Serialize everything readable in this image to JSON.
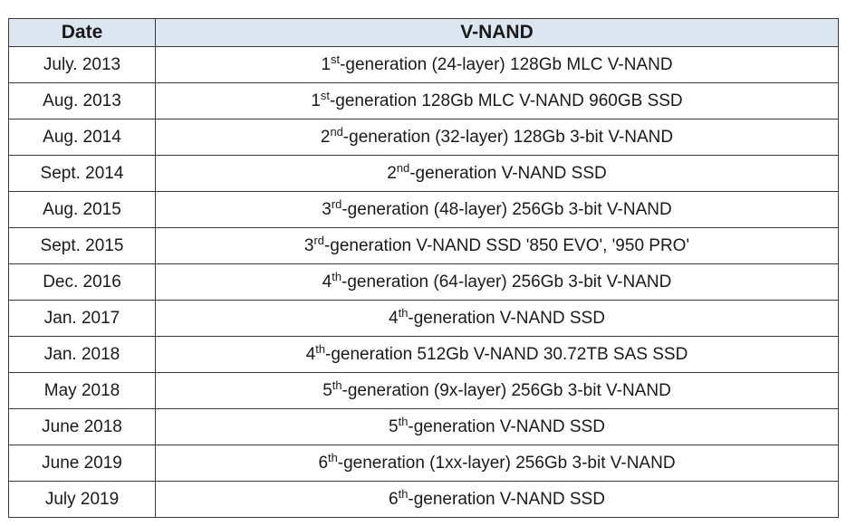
{
  "table": {
    "headers": {
      "date": "Date",
      "vnand": "V-NAND"
    },
    "rows": [
      {
        "date": "July. 2013",
        "num": "1",
        "suffix": "st",
        "desc": "-generation (24-layer) 128Gb MLC V-NAND"
      },
      {
        "date": "Aug. 2013",
        "num": "1",
        "suffix": "st",
        "desc": "-generation 128Gb MLC V-NAND 960GB SSD"
      },
      {
        "date": "Aug. 2014",
        "num": "2",
        "suffix": "nd",
        "desc": "-generation (32-layer) 128Gb 3-bit V-NAND"
      },
      {
        "date": "Sept. 2014",
        "num": "2",
        "suffix": "nd",
        "desc": "-generation V-NAND SSD"
      },
      {
        "date": "Aug. 2015",
        "num": "3",
        "suffix": "rd",
        "desc": "-generation (48-layer) 256Gb 3-bit V-NAND"
      },
      {
        "date": "Sept. 2015",
        "num": "3",
        "suffix": "rd",
        "desc": "-generation V-NAND SSD '850 EVO', '950 PRO'"
      },
      {
        "date": "Dec. 2016",
        "num": "4",
        "suffix": "th",
        "desc": "-generation (64-layer) 256Gb 3-bit V-NAND"
      },
      {
        "date": "Jan. 2017",
        "num": "4",
        "suffix": "th",
        "desc": "-generation V-NAND SSD"
      },
      {
        "date": "Jan. 2018",
        "num": "4",
        "suffix": "th",
        "desc": "-generation 512Gb V-NAND 30.72TB SAS SSD"
      },
      {
        "date": "May 2018",
        "num": "5",
        "suffix": "th",
        "desc": "-generation (9x-layer) 256Gb 3-bit V-NAND"
      },
      {
        "date": "June 2018",
        "num": "5",
        "suffix": "th",
        "desc": "-generation V-NAND SSD"
      },
      {
        "date": "June 2019",
        "num": "6",
        "suffix": "th",
        "desc": "-generation (1xx-layer) 256Gb 3-bit V-NAND"
      },
      {
        "date": "July 2019",
        "num": "6",
        "suffix": "th",
        "desc": "-generation V-NAND SSD"
      }
    ]
  }
}
